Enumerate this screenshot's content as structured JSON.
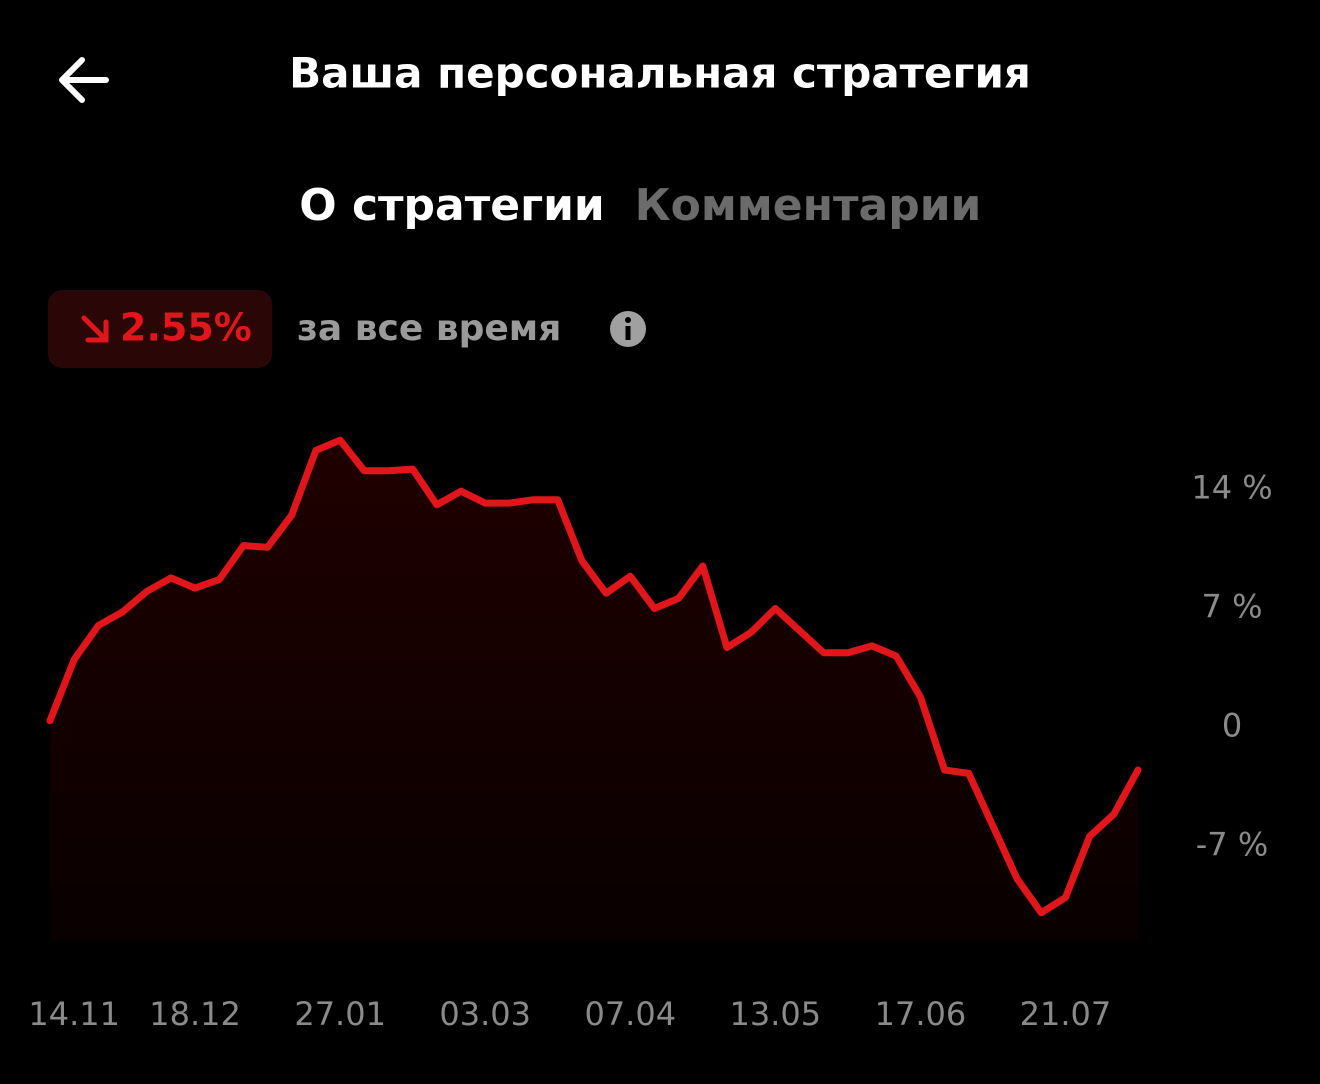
{
  "header": {
    "title": "Ваша персональная стратегия"
  },
  "tabs": [
    {
      "label": "О стратегии",
      "active": true
    },
    {
      "label": "Комментарии",
      "active": false
    }
  ],
  "performance": {
    "value_text": "2.55%",
    "caption": "за все время"
  },
  "chart_data": {
    "type": "line",
    "color": "#e0161b",
    "area": true,
    "grid": false,
    "categories": [
      null,
      "14.11",
      null,
      null,
      null,
      null,
      "18.12",
      null,
      null,
      null,
      null,
      null,
      "27.01",
      null,
      null,
      null,
      null,
      null,
      "03.03",
      null,
      null,
      null,
      null,
      null,
      "07.04",
      null,
      null,
      null,
      null,
      null,
      "13.05",
      null,
      null,
      null,
      null,
      null,
      "17.06",
      null,
      null,
      null,
      null,
      null,
      "21.07",
      null,
      null,
      null
    ],
    "values": [
      0.4,
      4.0,
      6.0,
      6.8,
      8.0,
      8.8,
      8.2,
      8.7,
      10.7,
      10.6,
      12.5,
      16.3,
      16.9,
      15.1,
      15.1,
      15.2,
      13.1,
      13.9,
      13.2,
      13.2,
      13.4,
      13.4,
      9.8,
      7.9,
      8.9,
      7.0,
      7.6,
      9.5,
      4.7,
      5.6,
      7.0,
      5.7,
      4.4,
      4.4,
      4.8,
      4.2,
      1.8,
      -2.5,
      -2.7,
      -5.8,
      -8.9,
      -10.9,
      -10.0,
      -6.4,
      -5.1,
      -2.5
    ],
    "ylim": [
      -12.5,
      17.5
    ],
    "yticks": [
      {
        "value": 14,
        "label": "14 %"
      },
      {
        "value": 7,
        "label": "7 %"
      },
      0,
      {
        "value": -7,
        "label": "-7 %"
      }
    ]
  }
}
